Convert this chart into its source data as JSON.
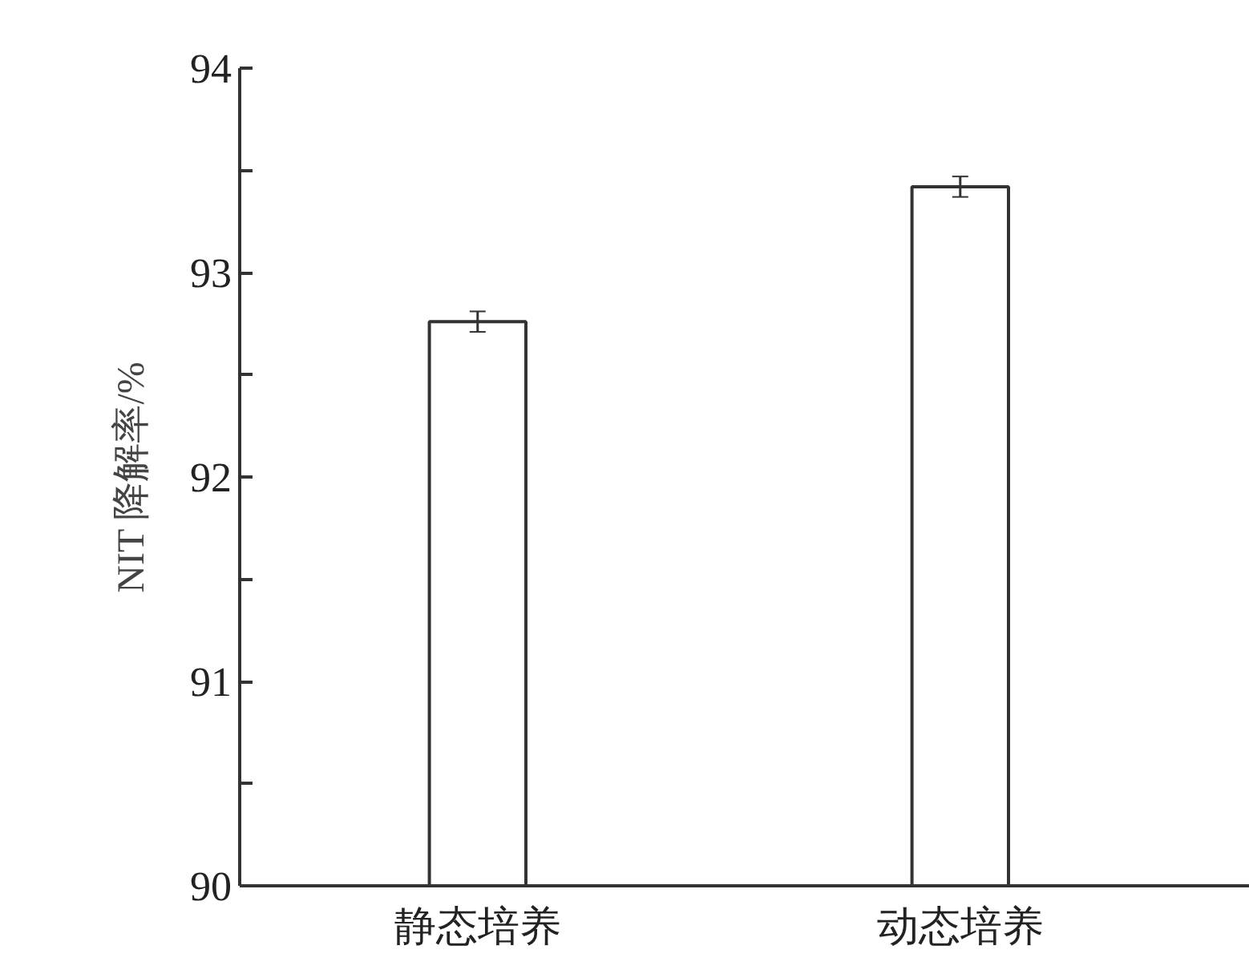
{
  "chart_data": {
    "type": "bar",
    "ylabel": "NIT 降解率/%",
    "categories": [
      "静态培养",
      "动态培养"
    ],
    "values": [
      92.76,
      93.42
    ],
    "errors": [
      0.05,
      0.05
    ],
    "color": "#ffffff",
    "ylim": [
      90,
      94
    ],
    "yticks": [
      90,
      {
        "value": 90.5,
        "label": null
      },
      91,
      {
        "value": 91.5,
        "label": null
      },
      92,
      {
        "value": 92.5,
        "label": null
      },
      93,
      {
        "value": 93.5,
        "label": null
      },
      94
    ],
    "grid": false
  }
}
